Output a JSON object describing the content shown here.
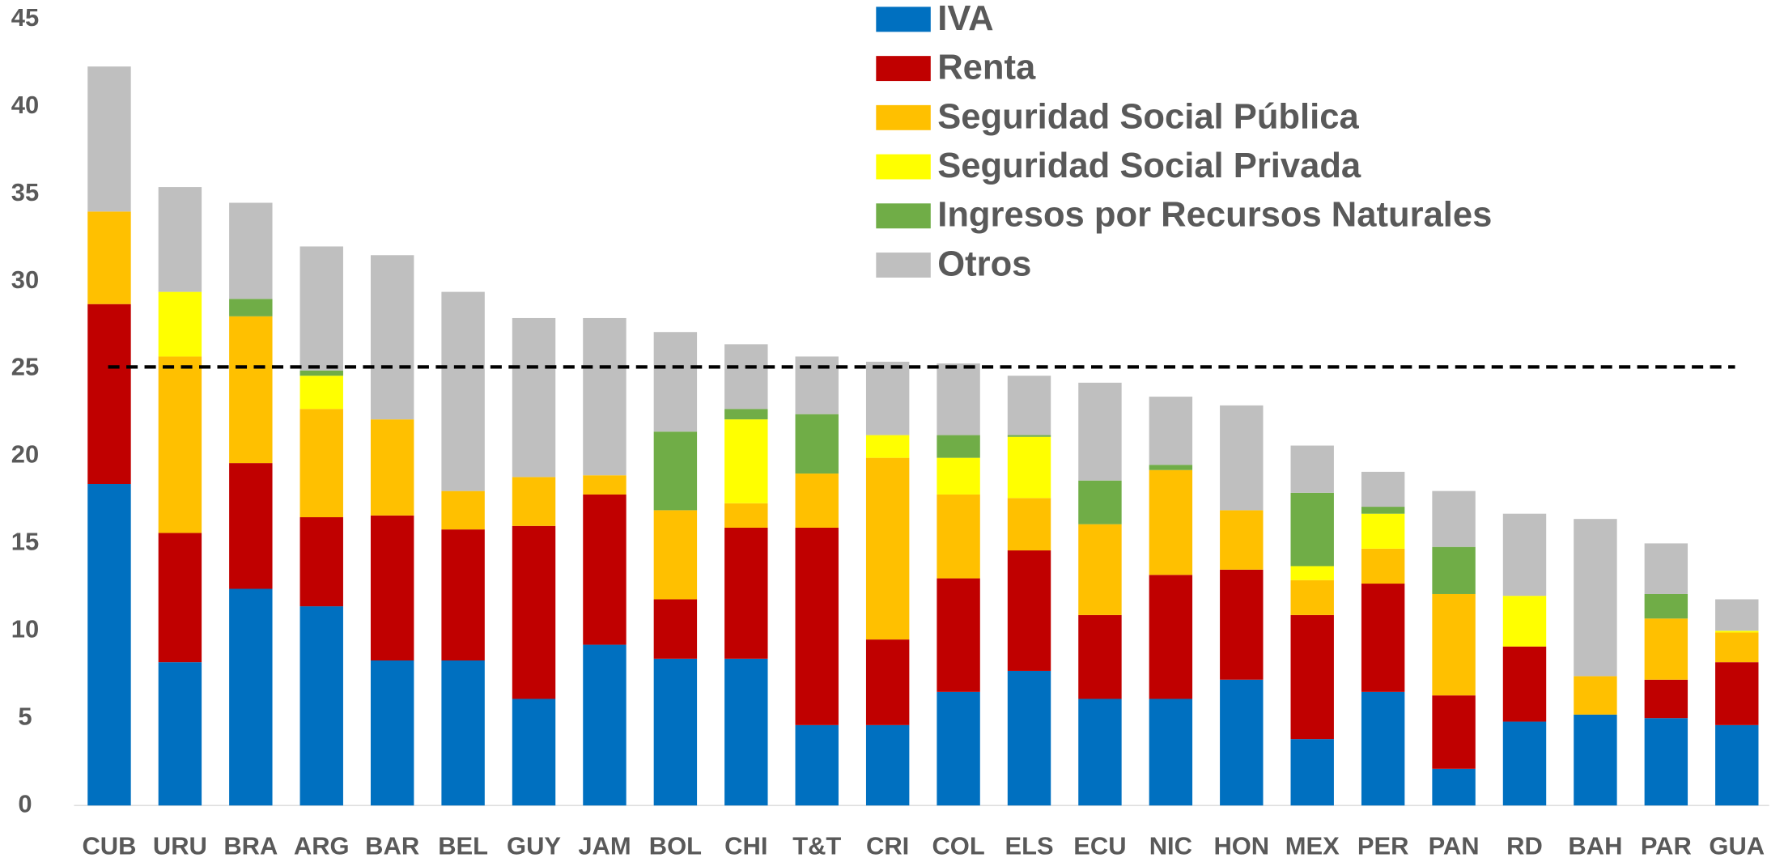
{
  "chart_data": {
    "type": "bar",
    "stacked": true,
    "categories": [
      "CUB",
      "URU",
      "BRA",
      "ARG",
      "BAR",
      "BEL",
      "GUY",
      "JAM",
      "BOL",
      "CHI",
      "T&T",
      "CRI",
      "COL",
      "ELS",
      "ECU",
      "NIC",
      "HON",
      "MEX",
      "PER",
      "PAN",
      "RD",
      "BAH",
      "PAR",
      "GUA"
    ],
    "series": [
      {
        "name": "IVA",
        "color": "#0070c0",
        "values": [
          18.4,
          8.2,
          12.4,
          11.4,
          8.3,
          8.3,
          6.1,
          9.2,
          8.4,
          8.4,
          4.6,
          4.6,
          6.5,
          7.7,
          6.1,
          6.1,
          7.2,
          3.8,
          6.5,
          2.1,
          4.8,
          5.2,
          5.0,
          4.6
        ]
      },
      {
        "name": "Renta",
        "color": "#c00000",
        "values": [
          10.3,
          7.4,
          7.2,
          5.1,
          8.3,
          7.5,
          9.9,
          8.6,
          3.4,
          7.5,
          11.3,
          4.9,
          6.5,
          6.9,
          4.8,
          7.1,
          6.3,
          7.1,
          6.2,
          4.2,
          4.3,
          0,
          2.2,
          3.6
        ]
      },
      {
        "name": "Seguridad Social Pública",
        "color": "#ffc000",
        "values": [
          5.3,
          10.1,
          8.4,
          6.2,
          5.5,
          2.2,
          2.8,
          1.1,
          5.1,
          1.4,
          3.1,
          10.4,
          4.8,
          3.0,
          5.2,
          6.0,
          3.4,
          2.0,
          2.0,
          5.8,
          0,
          2.2,
          3.5,
          1.7
        ]
      },
      {
        "name": "Seguridad Social Privada",
        "color": "#ffff00",
        "values": [
          0,
          3.7,
          0,
          1.9,
          0,
          0,
          0,
          0,
          0,
          4.8,
          0,
          1.3,
          2.1,
          3.5,
          0,
          0,
          0,
          0.8,
          2.0,
          0,
          2.9,
          0,
          0,
          0.1
        ]
      },
      {
        "name": "Ingresos por Recursos Naturales",
        "color": "#70ad47",
        "values": [
          0,
          0,
          1.0,
          0.3,
          0,
          0,
          0,
          0,
          4.5,
          0.6,
          3.4,
          0,
          1.3,
          0.1,
          2.5,
          0.3,
          0,
          4.2,
          0.4,
          2.7,
          0,
          0,
          1.4,
          0
        ]
      },
      {
        "name": "Otros",
        "color": "#bfbfbf",
        "values": [
          8.3,
          6.0,
          5.5,
          7.1,
          9.4,
          11.4,
          9.1,
          9.0,
          5.7,
          3.7,
          3.3,
          4.2,
          4.1,
          3.4,
          5.6,
          3.9,
          6.0,
          2.7,
          2.0,
          3.2,
          4.7,
          9.0,
          2.9,
          1.8
        ]
      }
    ],
    "reference_line": 25.1,
    "ylim": [
      0,
      45
    ],
    "yticks": [
      0,
      5,
      10,
      15,
      20,
      25,
      30,
      35,
      40,
      45
    ],
    "grid": false,
    "legend": "top"
  }
}
